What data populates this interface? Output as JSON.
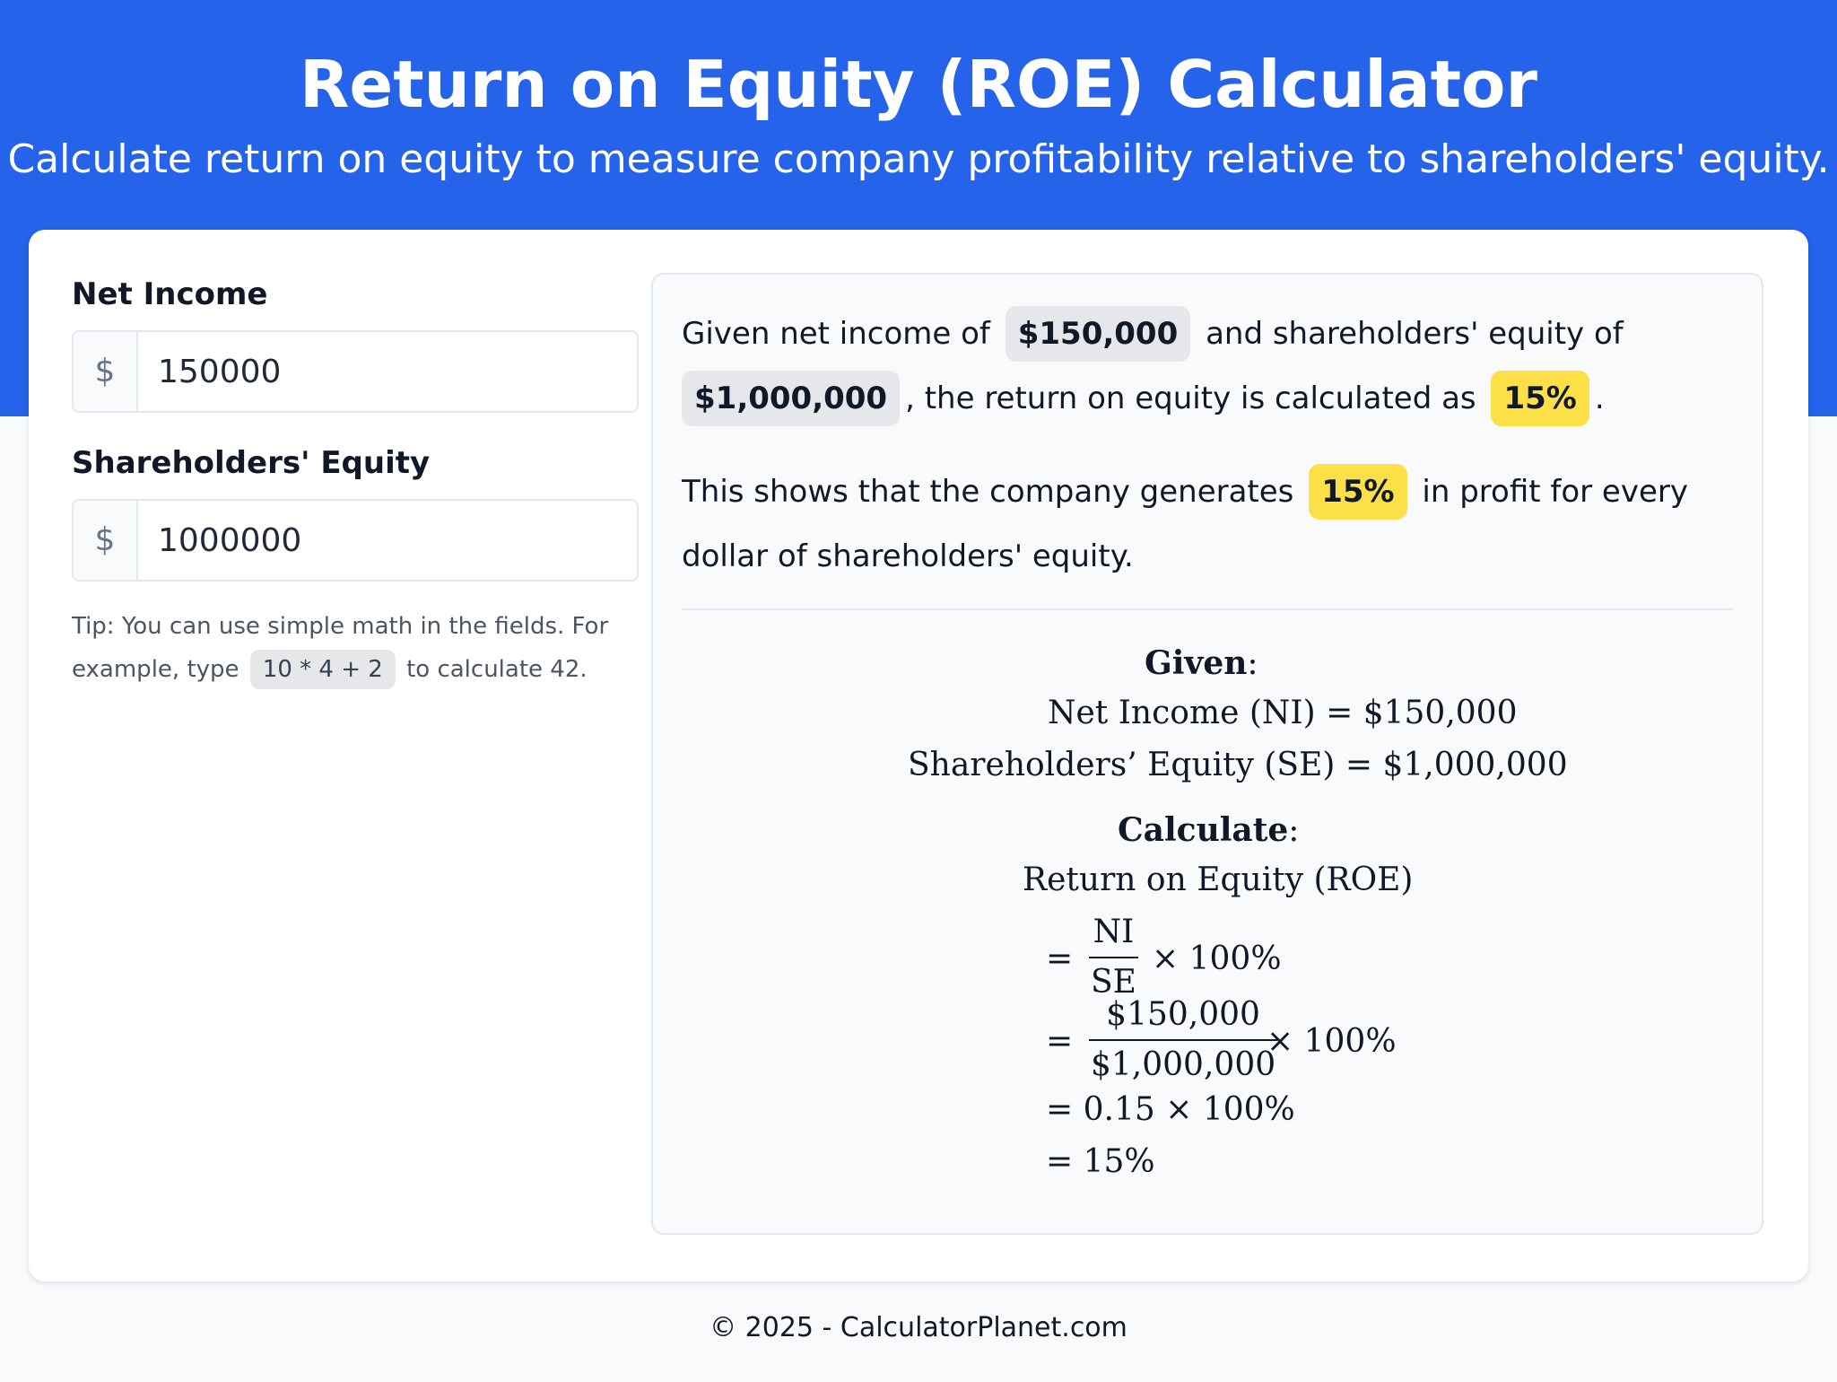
{
  "header": {
    "title": "Return on Equity (ROE) Calculator",
    "subtitle": "Calculate return on equity to measure company profitability relative to shareholders' equity."
  },
  "inputs": {
    "net_income": {
      "label": "Net Income",
      "prefix": "$",
      "value": "150000"
    },
    "shareholders_equity": {
      "label": "Shareholders' Equity",
      "prefix": "$",
      "value": "1000000"
    }
  },
  "tip": {
    "text_before": "Tip: You can use simple math in the fields. For example, type",
    "example": "10 * 4 + 2",
    "text_after": "to calculate 42."
  },
  "explanation": {
    "p1_text1": "Given net income of",
    "p1_net_income": "$150,000",
    "p1_text2": "and shareholders' equity of",
    "p1_equity": "$1,000,000",
    "p1_text3": ", the return on equity is calculated as",
    "p1_result": "15%",
    "p1_text4": ".",
    "p2_text1": "This shows that the company generates",
    "p2_result": "15%",
    "p2_text2": "in profit for every dollar of shareholders' equity."
  },
  "formula": {
    "given_heading": "Given",
    "colon": ":",
    "line_ni": "Net Income (NI) = $150,000",
    "line_se": "Shareholders’ Equity (SE) = $1,000,000",
    "calculate_heading": "Calculate",
    "roe_label": "Return on Equity (ROE)",
    "eq1_num": "NI",
    "eq1_den": "SE",
    "eq1_tail": "× 100%",
    "eq2_num": "$150,000",
    "eq2_den": "$1,000,000",
    "eq2_tail": "× 100%",
    "eq3": "= 0.15 × 100%",
    "eq4": "= 15%",
    "equals": "="
  },
  "footer": {
    "text": "© 2025 - CalculatorPlanet.com"
  },
  "colors": {
    "brand_blue": "#2563eb",
    "highlight_yellow": "#fde047",
    "chip_gray": "#e5e7eb"
  }
}
